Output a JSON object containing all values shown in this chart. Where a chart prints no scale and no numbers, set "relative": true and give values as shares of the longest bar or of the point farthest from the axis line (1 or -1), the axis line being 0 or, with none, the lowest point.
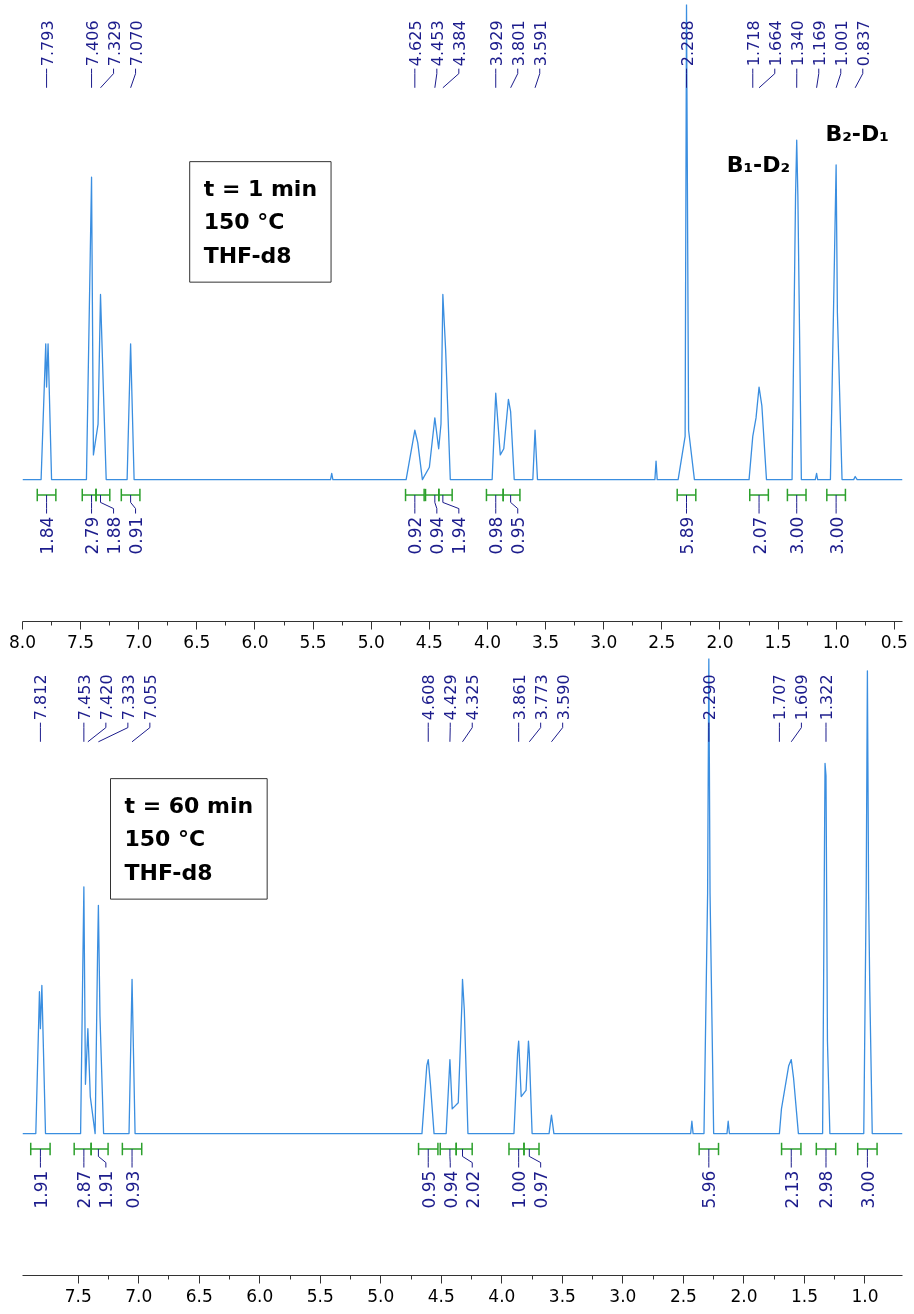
{
  "chart_data": [
    {
      "type": "line",
      "relative": true,
      "grid": false,
      "xlim": [
        8.0,
        0.43
      ],
      "xticks": [
        {
          "value": 8,
          "label": "8.0"
        },
        7.5,
        {
          "value": 7,
          "label": "7.0"
        },
        6.5,
        {
          "value": 6,
          "label": "6.0"
        },
        5.5,
        {
          "value": 5,
          "label": "5.0"
        },
        4.5,
        {
          "value": 4,
          "label": "4.0"
        },
        3.5,
        {
          "value": 3,
          "label": "3.0"
        },
        2.5,
        {
          "value": 2,
          "label": "2.0"
        },
        1.5,
        {
          "value": 1,
          "label": "1.0"
        },
        0.5
      ],
      "x": [
        8.0,
        7.84,
        7.8,
        7.793,
        7.78,
        7.75,
        7.45,
        7.406,
        7.39,
        7.35,
        7.329,
        7.3,
        7.28,
        7.1,
        7.07,
        7.04,
        5.35,
        5.34,
        5.33,
        4.7,
        4.625,
        4.6,
        4.56,
        4.5,
        4.453,
        4.42,
        4.4,
        4.384,
        4.36,
        4.32,
        3.96,
        3.929,
        3.89,
        3.86,
        3.82,
        3.801,
        3.77,
        3.61,
        3.591,
        3.57,
        2.56,
        2.55,
        2.54,
        2.36,
        2.3,
        2.288,
        2.27,
        2.22,
        1.75,
        1.718,
        1.69,
        1.664,
        1.64,
        1.6,
        1.38,
        1.35,
        1.34,
        1.33,
        1.3,
        1.18,
        1.169,
        1.16,
        1.05,
        1.02,
        1.001,
        0.99,
        0.95,
        0.85,
        0.837,
        0.82,
        0.43
      ],
      "series": [
        {
          "color": "#3a8ee0",
          "values": [
            0.23,
            0.23,
            0.45,
            0.38,
            0.45,
            0.23,
            0.23,
            0.72,
            0.27,
            0.32,
            0.53,
            0.35,
            0.23,
            0.23,
            0.45,
            0.23,
            0.23,
            0.24,
            0.23,
            0.23,
            0.31,
            0.29,
            0.23,
            0.25,
            0.33,
            0.28,
            0.32,
            0.53,
            0.44,
            0.23,
            0.23,
            0.37,
            0.27,
            0.28,
            0.36,
            0.34,
            0.23,
            0.23,
            0.31,
            0.23,
            0.23,
            0.26,
            0.23,
            0.23,
            0.3,
            1.0,
            0.31,
            0.23,
            0.23,
            0.3,
            0.33,
            0.38,
            0.35,
            0.23,
            0.23,
            0.69,
            0.78,
            0.69,
            0.23,
            0.23,
            0.24,
            0.23,
            0.23,
            0.54,
            0.74,
            0.5,
            0.23,
            0.23,
            0.235,
            0.23,
            0.23
          ]
        }
      ],
      "annotations": [
        "t = 1 min\n150 °C\nTHF-d8",
        "B₁-D₂",
        "B₂-D₁",
        {
          "text": "7.793",
          "x": 7.793
        },
        {
          "text": "7.406",
          "x": 7.406
        },
        {
          "text": "7.329",
          "x": 7.329
        },
        {
          "text": "7.070",
          "x": 7.07
        },
        {
          "text": "4.625",
          "x": 4.625
        },
        {
          "text": "4.453",
          "x": 4.453
        },
        {
          "text": "4.384",
          "x": 4.384
        },
        {
          "text": "3.929",
          "x": 3.929
        },
        {
          "text": "3.801",
          "x": 3.801
        },
        {
          "text": "3.591",
          "x": 3.591
        },
        {
          "text": "2.288",
          "x": 2.288
        },
        {
          "text": "1.718",
          "x": 1.718
        },
        {
          "text": "1.664",
          "x": 1.664
        },
        {
          "text": "1.340",
          "x": 1.34
        },
        {
          "text": "1.169",
          "x": 1.169
        },
        {
          "text": "1.001",
          "x": 1.001
        },
        {
          "text": "0.837",
          "x": 0.837
        },
        {
          "text": "1.84",
          "x": 7.793
        },
        {
          "text": "2.79",
          "x": 7.406
        },
        {
          "text": "1.88",
          "x": 7.329
        },
        {
          "text": "0.91",
          "x": 7.07
        },
        {
          "text": "0.92",
          "x": 4.625
        },
        {
          "text": "0.94",
          "x": 4.453
        },
        {
          "text": "1.94",
          "x": 4.384
        },
        {
          "text": "0.98",
          "x": 3.929
        },
        {
          "text": "0.95",
          "x": 3.801
        },
        {
          "text": "5.89",
          "x": 2.288
        },
        {
          "text": "2.07",
          "x": 1.664
        },
        {
          "text": "3.00",
          "x": 1.34
        },
        {
          "text": "3.00",
          "x": 1.001
        }
      ]
    },
    {
      "type": "line",
      "relative": true,
      "grid": false,
      "xlim": [
        7.96,
        0.69
      ],
      "xticks": [
        7.5,
        {
          "value": 7,
          "label": "7.0"
        },
        6.5,
        {
          "value": 6,
          "label": "6.0"
        },
        5.5,
        {
          "value": 5,
          "label": "5.0"
        },
        4.5,
        {
          "value": 4,
          "label": "4.0"
        },
        3.5,
        {
          "value": 3,
          "label": "3.0"
        },
        2.5,
        {
          "value": 2,
          "label": "2.0"
        },
        1.5,
        {
          "value": 1,
          "label": "1.0"
        }
      ],
      "x": [
        7.96,
        7.85,
        7.82,
        7.812,
        7.8,
        7.77,
        7.48,
        7.453,
        7.44,
        7.42,
        7.4,
        7.36,
        7.34,
        7.333,
        7.32,
        7.29,
        7.08,
        7.055,
        7.03,
        4.66,
        4.62,
        4.608,
        4.59,
        4.56,
        4.46,
        4.429,
        4.41,
        4.36,
        4.33,
        4.325,
        4.31,
        4.28,
        3.9,
        3.87,
        3.861,
        3.84,
        3.8,
        3.78,
        3.773,
        3.75,
        3.61,
        3.59,
        3.57,
        2.44,
        2.43,
        2.42,
        2.33,
        2.3,
        2.29,
        2.28,
        2.25,
        2.14,
        2.13,
        2.12,
        1.707,
        1.69,
        1.63,
        1.609,
        1.59,
        1.55,
        1.35,
        1.33,
        1.322,
        1.31,
        1.29,
        1.01,
        0.99,
        0.98,
        0.97,
        0.96,
        0.94,
        0.69
      ],
      "series": [
        {
          "color": "#3a8ee0",
          "values": [
            0.23,
            0.23,
            0.46,
            0.4,
            0.47,
            0.23,
            0.23,
            0.63,
            0.31,
            0.4,
            0.29,
            0.23,
            0.52,
            0.6,
            0.42,
            0.23,
            0.23,
            0.48,
            0.23,
            0.23,
            0.34,
            0.35,
            0.31,
            0.23,
            0.23,
            0.35,
            0.27,
            0.28,
            0.44,
            0.48,
            0.43,
            0.23,
            0.23,
            0.36,
            0.38,
            0.29,
            0.3,
            0.38,
            0.36,
            0.23,
            0.23,
            0.26,
            0.23,
            0.23,
            0.25,
            0.23,
            0.23,
            0.62,
            1.0,
            0.62,
            0.23,
            0.23,
            0.25,
            0.23,
            0.23,
            0.27,
            0.34,
            0.35,
            0.32,
            0.23,
            0.23,
            0.83,
            0.81,
            0.38,
            0.23,
            0.23,
            0.62,
            0.98,
            0.62,
            0.46,
            0.23,
            0.23
          ]
        }
      ],
      "annotations": [
        "t = 60 min\n150 °C\nTHF-d8",
        {
          "text": "7.812",
          "x": 7.812
        },
        {
          "text": "7.453",
          "x": 7.453
        },
        {
          "text": "7.420",
          "x": 7.42
        },
        {
          "text": "7.333",
          "x": 7.333
        },
        {
          "text": "7.055",
          "x": 7.055
        },
        {
          "text": "4.608",
          "x": 4.608
        },
        {
          "text": "4.429",
          "x": 4.429
        },
        {
          "text": "4.325",
          "x": 4.325
        },
        {
          "text": "3.861",
          "x": 3.861
        },
        {
          "text": "3.773",
          "x": 3.773
        },
        {
          "text": "3.590",
          "x": 3.59
        },
        {
          "text": "2.290",
          "x": 2.29
        },
        {
          "text": "1.707",
          "x": 1.707
        },
        {
          "text": "1.609",
          "x": 1.609
        },
        {
          "text": "1.322",
          "x": 1.322
        },
        {
          "text": "1.91",
          "x": 7.812
        },
        {
          "text": "2.87",
          "x": 7.453
        },
        {
          "text": "1.91",
          "x": 7.333
        },
        {
          "text": "0.93",
          "x": 7.055
        },
        {
          "text": "0.95",
          "x": 4.608
        },
        {
          "text": "0.94",
          "x": 4.429
        },
        {
          "text": "2.02",
          "x": 4.325
        },
        {
          "text": "1.00",
          "x": 3.861
        },
        {
          "text": "0.97",
          "x": 3.773
        },
        {
          "text": "5.96",
          "x": 2.29
        },
        {
          "text": "2.13",
          "x": 1.609
        },
        {
          "text": "2.98",
          "x": 1.322
        },
        {
          "text": "3.00",
          "x": 0.98
        }
      ]
    }
  ]
}
